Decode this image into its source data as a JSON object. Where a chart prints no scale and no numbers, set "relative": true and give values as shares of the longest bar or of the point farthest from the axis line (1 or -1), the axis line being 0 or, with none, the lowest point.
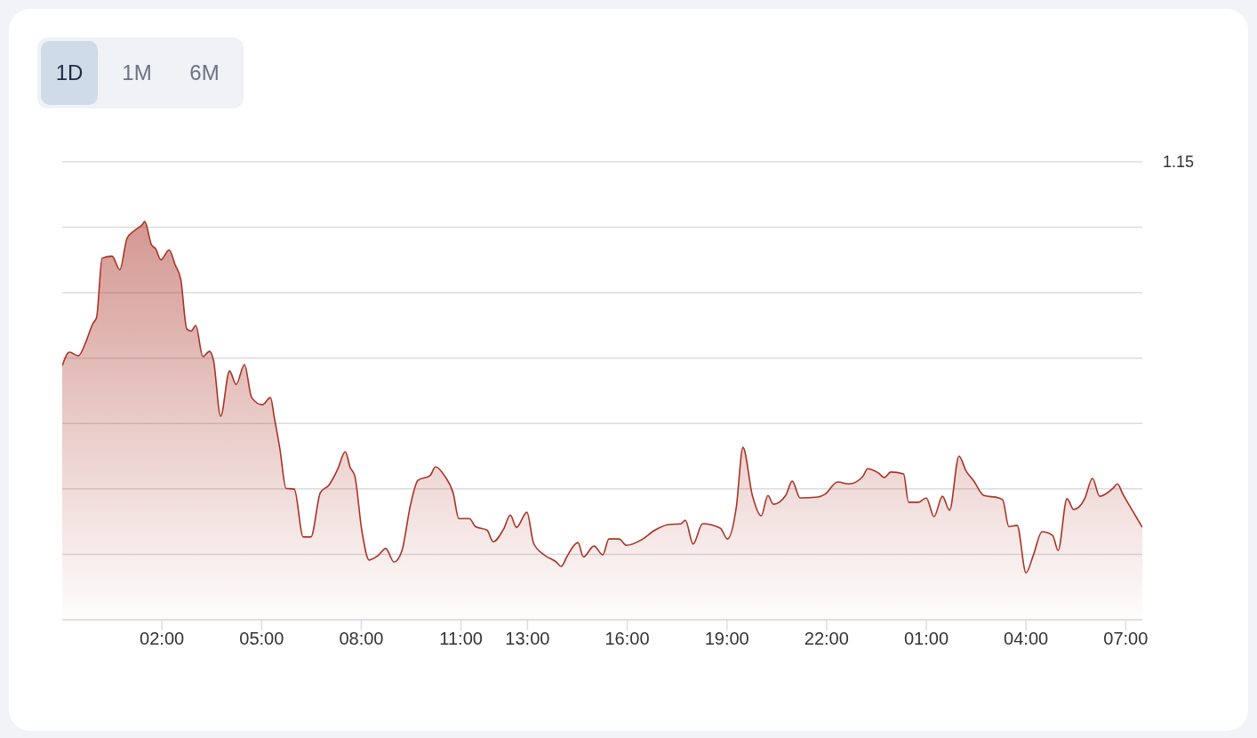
{
  "chart_data": {
    "type": "area",
    "relative": true,
    "grid": "y",
    "annotations": [
      "1D",
      "1M",
      "6M",
      "1.15"
    ],
    "xlim": [
      "--01-01T23:00",
      "--01-03T07:30"
    ],
    "xticks": [
      {
        "value": "--01-02T02:00",
        "label": "02:00"
      },
      {
        "value": "--01-02T05:00",
        "label": "05:00"
      },
      {
        "value": "--01-02T08:00",
        "label": "08:00"
      },
      {
        "value": "--01-02T11:00",
        "label": "11:00"
      },
      {
        "value": "--01-02T13:00",
        "label": "13:00"
      },
      {
        "value": "--01-02T16:00",
        "label": "16:00"
      },
      {
        "value": "--01-02T19:00",
        "label": "19:00"
      },
      {
        "value": "--01-02T22:00",
        "label": "22:00"
      },
      {
        "value": "--01-03T01:00",
        "label": "01:00"
      },
      {
        "value": "--01-03T04:00",
        "label": "04:00"
      },
      {
        "value": "--01-03T07:00",
        "label": "07:00"
      }
    ],
    "series": [
      {
        "color": "#a93226",
        "x": [
          "--01-01T23:00",
          "--01-01T23:13",
          "--01-01T23:29",
          "--01-01T23:43",
          "--01-01T23:55",
          "--01-02T00:02",
          "--01-02T00:12",
          "--01-02T00:30",
          "--01-02T00:44",
          "--01-02T00:57",
          "--01-02T01:11",
          "--01-02T01:25",
          "--01-02T01:29",
          "--01-02T01:41",
          "--01-02T01:49",
          "--01-02T01:58",
          "--01-02T02:13",
          "--01-02T02:24",
          "--01-02T02:34",
          "--01-02T02:45",
          "--01-02T02:53",
          "--01-02T03:01",
          "--01-02T03:14",
          "--01-02T03:26",
          "--01-02T03:33",
          "--01-02T03:46",
          "--01-02T04:02",
          "--01-02T04:14",
          "--01-02T04:29",
          "--01-02T04:42",
          "--01-02T05:01",
          "--01-02T05:16",
          "--01-02T05:23",
          "--01-02T05:33",
          "--01-02T05:44",
          "--01-02T05:59",
          "--01-02T06:15",
          "--01-02T06:29",
          "--01-02T06:46",
          "--01-02T07:02",
          "--01-02T07:17",
          "--01-02T07:31",
          "--01-02T07:40",
          "--01-02T07:48",
          "--01-02T08:01",
          "--01-02T08:14",
          "--01-02T08:30",
          "--01-02T08:44",
          "--01-02T08:59",
          "--01-02T09:13",
          "--01-02T09:29",
          "--01-02T09:42",
          "--01-02T10:04",
          "--01-02T10:14",
          "--01-02T10:30",
          "--01-02T10:46",
          "--01-02T10:56",
          "--01-02T11:15",
          "--01-02T11:26",
          "--01-02T11:47",
          "--01-02T11:58",
          "--01-02T12:17",
          "--01-02T12:29",
          "--01-02T12:40",
          "--01-02T12:59",
          "--01-02T13:11",
          "--01-02T13:30",
          "--01-02T13:52",
          "--01-02T14:01",
          "--01-02T14:11",
          "--01-02T14:31",
          "--01-02T14:41",
          "--01-02T15:00",
          "--01-02T15:16",
          "--01-02T15:27",
          "--01-02T15:45",
          "--01-02T15:59",
          "--01-02T16:26",
          "--01-02T16:50",
          "--01-02T17:14",
          "--01-02T17:37",
          "--01-02T17:45",
          "--01-02T17:59",
          "--01-02T18:16",
          "--01-02T18:48",
          "--01-02T19:01",
          "--01-02T19:17",
          "--01-02T19:29",
          "--01-02T19:46",
          "--01-02T20:02",
          "--01-02T20:14",
          "--01-02T20:24",
          "--01-02T20:46",
          "--01-02T20:58",
          "--01-02T21:12",
          "--01-02T21:44",
          "--01-02T21:57",
          "--01-02T22:20",
          "--01-02T22:40",
          "--01-02T23:05",
          "--01-02T23:14",
          "--01-02T23:34",
          "--01-02T23:44",
          "--01-02T23:56",
          "--01-03T00:19",
          "--01-03T00:28",
          "--01-03T00:46",
          "--01-03T01:00",
          "--01-03T01:14",
          "--01-03T01:29",
          "--01-03T01:42",
          "--01-03T01:59",
          "--01-03T02:12",
          "--01-03T02:25",
          "--01-03T02:44",
          "--01-03T03:11",
          "--01-03T03:18",
          "--01-03T03:29",
          "--01-03T03:44",
          "--01-03T04:00",
          "--01-03T04:13",
          "--01-03T04:29",
          "--01-03T04:48",
          "--01-03T04:58",
          "--01-03T05:14",
          "--01-03T05:26",
          "--01-03T05:46",
          "--01-03T06:00",
          "--01-03T06:13",
          "--01-03T06:37",
          "--01-03T06:45",
          "--01-03T06:55",
          "--01-03T07:14",
          "--01-03T07:30"
        ],
        "values": [
          0.638,
          0.672,
          0.663,
          0.699,
          0.743,
          0.759,
          0.908,
          0.913,
          0.879,
          0.958,
          0.978,
          0.993,
          1,
          0.942,
          0.931,
          0.904,
          0.929,
          0.891,
          0.855,
          0.73,
          0.725,
          0.739,
          0.661,
          0.674,
          0.652,
          0.511,
          0.625,
          0.591,
          0.641,
          0.558,
          0.54,
          0.558,
          0.507,
          0.429,
          0.33,
          0.328,
          0.208,
          0.208,
          0.319,
          0.339,
          0.377,
          0.422,
          0.382,
          0.362,
          0.223,
          0.15,
          0.161,
          0.179,
          0.145,
          0.172,
          0.29,
          0.35,
          0.362,
          0.384,
          0.362,
          0.317,
          0.254,
          0.254,
          0.234,
          0.225,
          0.196,
          0.228,
          0.263,
          0.232,
          0.27,
          0.192,
          0.163,
          0.145,
          0.134,
          0.158,
          0.194,
          0.158,
          0.185,
          0.163,
          0.203,
          0.203,
          0.187,
          0.201,
          0.225,
          0.239,
          0.241,
          0.25,
          0.19,
          0.241,
          0.23,
          0.203,
          0.283,
          0.433,
          0.312,
          0.261,
          0.312,
          0.29,
          0.312,
          0.348,
          0.306,
          0.308,
          0.315,
          0.346,
          0.341,
          0.359,
          0.379,
          0.368,
          0.357,
          0.371,
          0.366,
          0.295,
          0.295,
          0.306,
          0.259,
          0.31,
          0.275,
          0.411,
          0.373,
          0.35,
          0.312,
          0.306,
          0.301,
          0.234,
          0.237,
          0.118,
          0.161,
          0.221,
          0.212,
          0.174,
          0.304,
          0.277,
          0.304,
          0.355,
          0.31,
          0.33,
          0.341,
          0.315,
          0.27,
          0.232
        ]
      }
    ]
  }
}
